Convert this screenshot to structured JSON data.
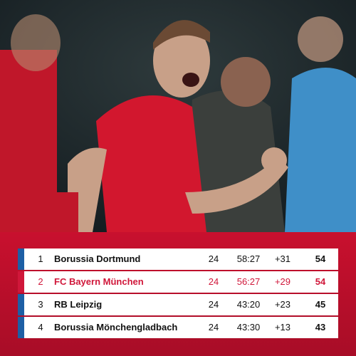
{
  "table": {
    "rows": [
      {
        "rank": 1,
        "team": "Borussia Dortmund",
        "games": 24,
        "goals": "58:27",
        "diff": "+31",
        "points": 54,
        "color": "#1d5fa5"
      },
      {
        "rank": 2,
        "team": "FC Bayern München",
        "games": 24,
        "goals": "56:27",
        "diff": "+29",
        "points": 54,
        "color": "#d0173a"
      },
      {
        "rank": 3,
        "team": "RB Leipzig",
        "games": 24,
        "goals": "43:20",
        "diff": "+23",
        "points": 45,
        "color": "#1d5fa5"
      },
      {
        "rank": 4,
        "team": "Borussia Mönchengladbach",
        "games": 24,
        "goals": "43:30",
        "diff": "+13",
        "points": 43,
        "color": "#1d5fa5"
      }
    ]
  }
}
